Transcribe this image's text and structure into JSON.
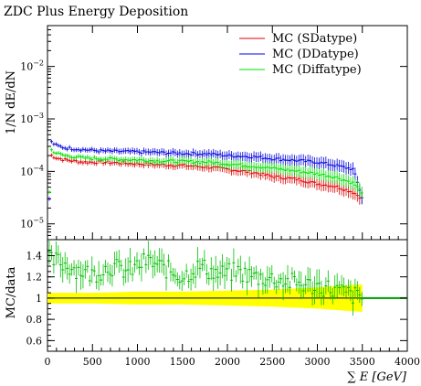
{
  "chart_data": [
    {
      "panel": "main",
      "type": "scatter",
      "title": "ZDC Plus Energy Deposition",
      "ylabel": "1/N dE/dN",
      "yscale": "log",
      "ylim": [
        5e-06,
        0.06
      ],
      "xlim": [
        0,
        4000
      ],
      "yticks": [
        {
          "value": 1e-05,
          "base": "10",
          "exp": "−5"
        },
        {
          "value": 0.0001,
          "base": "10",
          "exp": "−4"
        },
        {
          "value": 0.001,
          "base": "10",
          "exp": "−3"
        },
        {
          "value": 0.01,
          "base": "10",
          "exp": "−2"
        }
      ],
      "legend_position": "top-right",
      "series": [
        {
          "name": "MC (SDatype)",
          "color": "#e00000",
          "points": [
            [
              25,
              0.00021
            ],
            [
              100,
              0.00018
            ],
            [
              200,
              0.000165
            ],
            [
              400,
              0.00015
            ],
            [
              600,
              0.00015
            ],
            [
              800,
              0.000145
            ],
            [
              1000,
              0.00014
            ],
            [
              1200,
              0.000135
            ],
            [
              1500,
              0.00013
            ],
            [
              1800,
              0.00012
            ],
            [
              2000,
              0.00011
            ],
            [
              2300,
              9.5e-05
            ],
            [
              2500,
              8e-05
            ],
            [
              2800,
              7e-05
            ],
            [
              3000,
              5.8e-05
            ],
            [
              3200,
              5.2e-05
            ],
            [
              3400,
              4e-05
            ],
            [
              3500,
              3e-05
            ]
          ]
        },
        {
          "name": "MC (DDatype)",
          "color": "#0000e0",
          "points": [
            [
              25,
              0.00038
            ],
            [
              100,
              0.00031
            ],
            [
              200,
              0.00028
            ],
            [
              400,
              0.00026
            ],
            [
              600,
              0.000245
            ],
            [
              800,
              0.00024
            ],
            [
              1000,
              0.000235
            ],
            [
              1200,
              0.00023
            ],
            [
              1500,
              0.00022
            ],
            [
              1800,
              0.000215
            ],
            [
              2000,
              0.0002
            ],
            [
              2300,
              0.00019
            ],
            [
              2500,
              0.000175
            ],
            [
              2800,
              0.00016
            ],
            [
              3000,
              0.00015
            ],
            [
              3200,
              0.00013
            ],
            [
              3400,
              0.00011
            ],
            [
              3500,
              3e-05
            ]
          ]
        },
        {
          "name": "MC (Diffatype)",
          "color": "#00e000",
          "points": [
            [
              25,
              0.00027
            ],
            [
              100,
              0.00022
            ],
            [
              200,
              0.0002
            ],
            [
              400,
              0.00018
            ],
            [
              600,
              0.000175
            ],
            [
              800,
              0.00017
            ],
            [
              1000,
              0.000165
            ],
            [
              1200,
              0.00016
            ],
            [
              1500,
              0.000155
            ],
            [
              1800,
              0.00015
            ],
            [
              2000,
              0.00014
            ],
            [
              2300,
              0.000125
            ],
            [
              2500,
              0.000115
            ],
            [
              2800,
              0.0001
            ],
            [
              3000,
              9e-05
            ],
            [
              3200,
              7.8e-05
            ],
            [
              3400,
              6e-05
            ],
            [
              3500,
              4e-05
            ]
          ]
        }
      ]
    },
    {
      "panel": "ratio",
      "type": "scatter",
      "ylabel": "MC/data",
      "xlabel": "∑ E [GeV]",
      "xlim": [
        0,
        4000
      ],
      "ylim": [
        0.5,
        1.55
      ],
      "xticks": [
        "0",
        "500",
        "1000",
        "1500",
        "2000",
        "2500",
        "3000",
        "3500",
        "4000"
      ],
      "yticks": [
        "0.6",
        "0.8",
        "1",
        "1.2",
        "1.4"
      ],
      "data_band": {
        "color": "#ffff00",
        "x": [
          0,
          500,
          1000,
          1500,
          2000,
          2500,
          3000,
          3500
        ],
        "half_width": [
          0.05,
          0.05,
          0.06,
          0.06,
          0.07,
          0.08,
          0.1,
          0.13
        ]
      },
      "series": [
        {
          "name": "MC (Diffatype)",
          "color": "#00c000",
          "points": [
            [
              100,
              1.35
            ],
            [
              300,
              1.28
            ],
            [
              500,
              1.22
            ],
            [
              700,
              1.3
            ],
            [
              900,
              1.25
            ],
            [
              1100,
              1.35
            ],
            [
              1300,
              1.28
            ],
            [
              1500,
              1.2
            ],
            [
              1700,
              1.3
            ],
            [
              1900,
              1.22
            ],
            [
              2100,
              1.25
            ],
            [
              2300,
              1.2
            ],
            [
              2500,
              1.18
            ],
            [
              2700,
              1.15
            ],
            [
              2900,
              1.12
            ],
            [
              3100,
              1.1
            ],
            [
              3300,
              1.05
            ],
            [
              3500,
              1.0
            ]
          ]
        }
      ]
    }
  ]
}
